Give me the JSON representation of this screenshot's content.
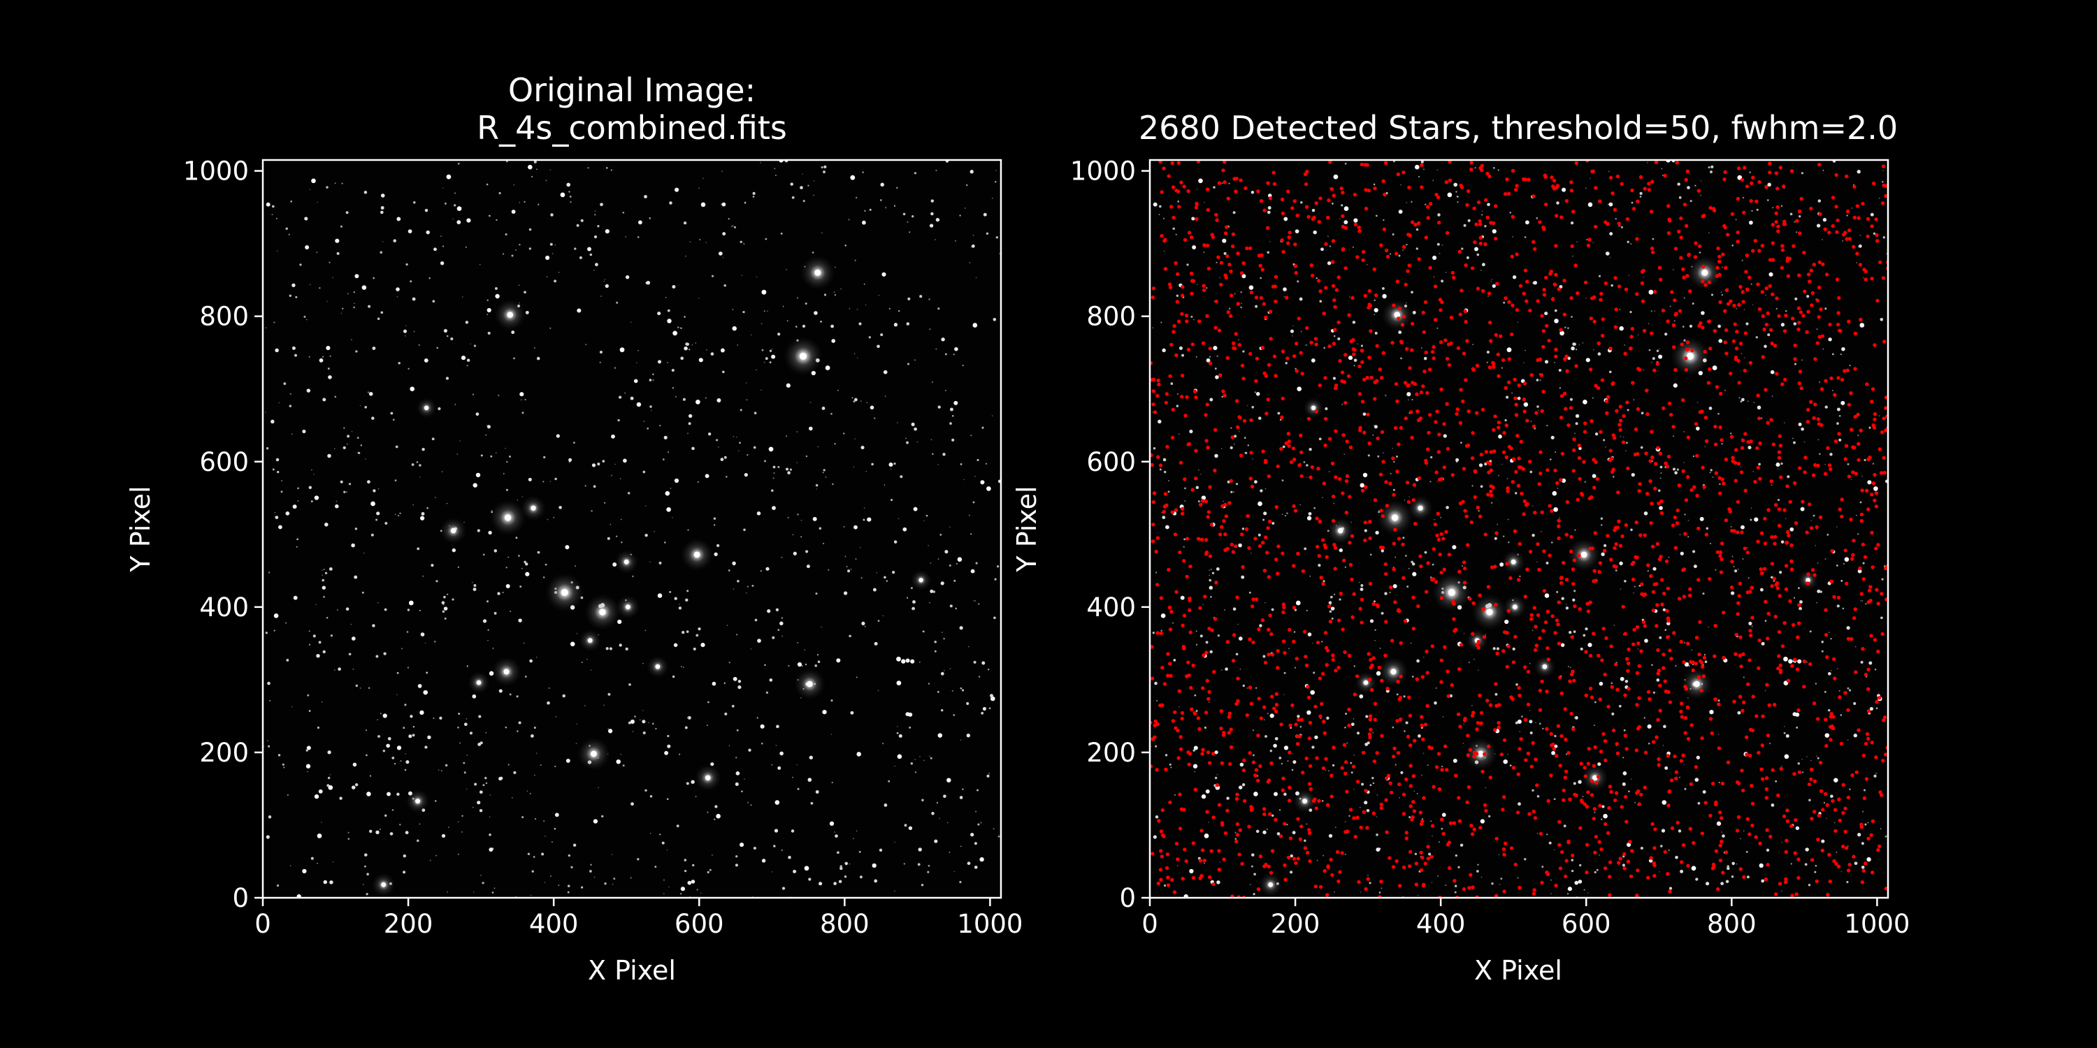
{
  "figure": {
    "background": "#000000",
    "foreground": "#ffffff",
    "marker_color": "#ff0000"
  },
  "chart_data": [
    {
      "type": "scatter",
      "variant": "image",
      "title_lines": [
        "Original Image:",
        "R_4s_combined.fits"
      ],
      "xlabel": "X Pixel",
      "ylabel": "Y Pixel",
      "xlim": [
        0,
        1015
      ],
      "ylim": [
        0,
        1015
      ],
      "xticks": [
        0,
        200,
        400,
        600,
        800,
        1000
      ],
      "yticks": [
        0,
        200,
        400,
        600,
        800,
        1000
      ],
      "colormap": "gray",
      "grid": false,
      "bright_stars": [
        {
          "x": 763,
          "y": 860,
          "v": 0.85
        },
        {
          "x": 340,
          "y": 802,
          "v": 0.75
        },
        {
          "x": 743,
          "y": 745,
          "v": 1.0
        },
        {
          "x": 337,
          "y": 523,
          "v": 0.9
        },
        {
          "x": 372,
          "y": 536,
          "v": 0.55
        },
        {
          "x": 262,
          "y": 505,
          "v": 0.6
        },
        {
          "x": 597,
          "y": 472,
          "v": 0.8
        },
        {
          "x": 415,
          "y": 420,
          "v": 1.0
        },
        {
          "x": 467,
          "y": 393,
          "v": 0.9
        },
        {
          "x": 502,
          "y": 400,
          "v": 0.5
        },
        {
          "x": 335,
          "y": 311,
          "v": 0.7
        },
        {
          "x": 752,
          "y": 294,
          "v": 0.75
        },
        {
          "x": 455,
          "y": 198,
          "v": 0.8
        },
        {
          "x": 612,
          "y": 165,
          "v": 0.6
        },
        {
          "x": 213,
          "y": 133,
          "v": 0.5
        },
        {
          "x": 166,
          "y": 18,
          "v": 0.5
        },
        {
          "x": 225,
          "y": 674,
          "v": 0.4
        },
        {
          "x": 905,
          "y": 437,
          "v": 0.4
        },
        {
          "x": 500,
          "y": 462,
          "v": 0.5
        },
        {
          "x": 450,
          "y": 354,
          "v": 0.45
        },
        {
          "x": 543,
          "y": 318,
          "v": 0.45
        },
        {
          "x": 297,
          "y": 296,
          "v": 0.45
        }
      ]
    },
    {
      "type": "scatter",
      "variant": "image+markers",
      "title": "2680 Detected Stars, threshold=50, fwhm=2.0",
      "detected_count": 2680,
      "threshold": 50,
      "fwhm": 2.0,
      "xlabel": "X Pixel",
      "ylabel": "Y Pixel",
      "xlim": [
        0,
        1015
      ],
      "ylim": [
        0,
        1015
      ],
      "xticks": [
        0,
        200,
        400,
        600,
        800,
        1000
      ],
      "yticks": [
        0,
        200,
        400,
        600,
        800,
        1000
      ],
      "colormap": "gray",
      "marker": "dot",
      "marker_color": "#ff0000",
      "grid": false
    }
  ]
}
